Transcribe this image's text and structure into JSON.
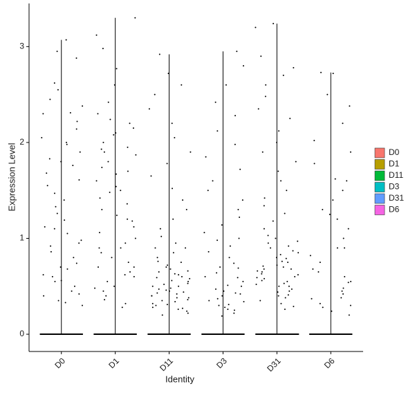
{
  "chart_data": {
    "type": "violin",
    "x_label": "Identity",
    "y_label": "Expression Level",
    "categories": [
      "D0",
      "D1",
      "D11",
      "D3",
      "D31",
      "D6"
    ],
    "ylim": [
      -0.18,
      3.45
    ],
    "yticks": [
      0,
      1,
      2,
      3
    ],
    "series": [
      {
        "name": "D0",
        "color": "#F8766D",
        "values": [
          0,
          0,
          0,
          0,
          0,
          0,
          0,
          0,
          0,
          0,
          0,
          0,
          3.07,
          2.95,
          2.88,
          2.62,
          2.55,
          2.45,
          2.38,
          2.31,
          2.22,
          2.14,
          2.05,
          1.98,
          1.9,
          1.83,
          1.76,
          1.68,
          1.61,
          1.55,
          1.47,
          1.4,
          1.33,
          1.26,
          1.19,
          1.12,
          1.05,
          0.98,
          0.92,
          0.86,
          0.8,
          0.74,
          0.68,
          0.62,
          0.56,
          0.5,
          0.45,
          0.4,
          0.35,
          0.3,
          0.95,
          0.7,
          0.55,
          1.8,
          2.3,
          0.42,
          0.6,
          1.1,
          2.0,
          0.33
        ]
      },
      {
        "name": "D1",
        "color": "#B79F00",
        "values": [
          0,
          0,
          0,
          0,
          0,
          0,
          0,
          0,
          0,
          0,
          0,
          0,
          3.3,
          3.12,
          2.98,
          2.77,
          2.6,
          2.42,
          2.3,
          2.24,
          2.15,
          2.08,
          2.0,
          1.93,
          1.87,
          1.8,
          1.74,
          1.67,
          1.6,
          1.54,
          1.48,
          1.42,
          1.36,
          1.3,
          1.24,
          1.18,
          1.12,
          1.06,
          1.0,
          0.95,
          0.9,
          0.85,
          0.8,
          0.75,
          0.7,
          0.65,
          0.6,
          0.55,
          0.5,
          0.45,
          0.4,
          0.36,
          0.32,
          0.28,
          1.9,
          1.95,
          2.1,
          1.5,
          0.62,
          0.48,
          1.2,
          0.9,
          0.7,
          2.2,
          1.7
        ]
      },
      {
        "name": "D11",
        "color": "#00BA38",
        "values": [
          0,
          0,
          0,
          0,
          0,
          0,
          0,
          0,
          0,
          0,
          0,
          0,
          2.92,
          2.72,
          2.6,
          2.5,
          2.35,
          2.2,
          2.05,
          1.9,
          1.78,
          1.65,
          1.52,
          1.4,
          1.3,
          1.2,
          1.1,
          1.02,
          0.95,
          0.9,
          0.85,
          0.8,
          0.76,
          0.72,
          0.68,
          0.65,
          0.62,
          0.59,
          0.56,
          0.53,
          0.5,
          0.48,
          0.46,
          0.44,
          0.42,
          0.4,
          0.38,
          0.36,
          0.34,
          0.32,
          0.3,
          0.28,
          0.26,
          0.24,
          0.22,
          0.2,
          0.6,
          0.55,
          0.5,
          0.45,
          0.7,
          0.4,
          0.35,
          0.52,
          0.43,
          0.66,
          0.75,
          0.58,
          0.47,
          0.38,
          0.31,
          0.9,
          0.27,
          0.63
        ]
      },
      {
        "name": "D3",
        "color": "#00BFC4",
        "values": [
          0,
          0,
          0,
          0,
          0,
          0,
          0,
          0,
          0,
          0,
          0,
          0,
          2.95,
          2.8,
          2.6,
          2.42,
          2.28,
          2.12,
          1.98,
          1.85,
          1.72,
          1.6,
          1.5,
          1.4,
          1.3,
          1.22,
          1.14,
          1.06,
          0.98,
          0.92,
          0.86,
          0.8,
          0.74,
          0.69,
          0.64,
          0.59,
          0.55,
          0.51,
          0.47,
          0.43,
          0.4,
          0.37,
          0.34,
          0.31,
          0.28,
          0.25,
          0.22,
          0.19,
          0.6,
          0.5,
          0.42,
          0.35,
          0.7,
          0.3,
          0.45,
          1.0,
          0.26
        ]
      },
      {
        "name": "D31",
        "color": "#619CFF",
        "values": [
          0,
          0,
          0,
          0,
          0,
          0,
          0,
          0,
          0,
          0,
          0,
          0,
          3.24,
          3.2,
          2.9,
          2.78,
          2.7,
          2.6,
          2.48,
          2.35,
          2.25,
          2.12,
          2.0,
          1.9,
          1.8,
          1.7,
          1.6,
          1.5,
          1.42,
          1.34,
          1.26,
          1.18,
          1.1,
          1.03,
          0.97,
          0.92,
          0.87,
          0.83,
          0.79,
          0.75,
          0.71,
          0.68,
          0.65,
          0.62,
          0.59,
          0.56,
          0.53,
          0.5,
          0.47,
          0.44,
          0.41,
          0.38,
          0.35,
          0.32,
          0.29,
          0.26,
          0.8,
          0.72,
          0.66,
          0.6,
          0.55,
          0.7,
          0.5,
          0.85,
          0.45,
          0.63,
          0.9,
          0.58,
          0.4,
          1.0,
          0.76,
          0.68,
          0.52,
          0.95
        ]
      },
      {
        "name": "D6",
        "color": "#F564E3",
        "values": [
          0,
          0,
          0,
          0,
          0,
          0,
          0,
          0,
          0,
          0,
          0,
          0,
          2.73,
          2.72,
          2.5,
          2.38,
          2.2,
          2.02,
          1.9,
          1.78,
          1.62,
          1.5,
          1.4,
          1.3,
          1.2,
          1.1,
          1.0,
          0.9,
          0.82,
          0.75,
          0.68,
          0.6,
          0.54,
          0.48,
          0.42,
          0.37,
          0.32,
          0.28,
          0.24,
          0.2,
          0.65,
          0.45,
          0.38,
          1.6,
          0.9,
          0.3,
          0.55,
          1.25
        ]
      }
    ]
  }
}
